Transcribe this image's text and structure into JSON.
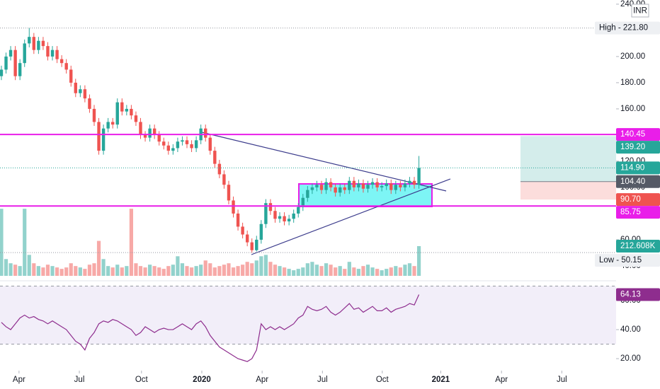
{
  "chart_data": {
    "type": "candlestick",
    "currency": "INR",
    "up_color": "#26a69a",
    "down_color": "#ef5350",
    "xlim": [
      -0.3,
      132.5
    ],
    "xticks": [
      {
        "value": 3.8,
        "label": "Apr"
      },
      {
        "value": 16.8,
        "label": "Jul"
      },
      {
        "value": 30.2,
        "label": "Oct"
      },
      {
        "value": 43.2,
        "label": "2020",
        "major": true
      },
      {
        "value": 56.2,
        "label": "Apr"
      },
      {
        "value": 69.2,
        "label": "Jul"
      },
      {
        "value": 82.1,
        "label": "Oct"
      },
      {
        "value": 94.7,
        "label": "2021",
        "major": true
      },
      {
        "value": 107.8,
        "label": "Apr"
      },
      {
        "value": 120.8,
        "label": "Jul"
      }
    ],
    "ylim": [
      32.4,
      243.2
    ],
    "yticks": [
      {
        "value": 40,
        "label": "40.00"
      },
      {
        "value": 60,
        "label": "60.00"
      },
      {
        "value": 80,
        "label": "80.00"
      },
      {
        "value": 100,
        "label": "100.00"
      },
      {
        "value": 120,
        "label": "120.00"
      },
      {
        "value": 140,
        "label": "140.00"
      },
      {
        "value": 160,
        "label": "160.00"
      },
      {
        "value": 180,
        "label": "180.00"
      },
      {
        "value": 200,
        "label": "200.00"
      },
      {
        "value": 220,
        "label": "220.00"
      },
      {
        "value": 240,
        "label": "240.00"
      }
    ],
    "open": [
      185,
      190,
      200,
      205,
      185,
      195,
      210,
      215,
      205,
      212,
      208,
      200,
      205,
      198,
      195,
      190,
      180,
      172,
      175,
      168,
      160,
      150,
      128,
      145,
      150,
      148,
      165,
      158,
      160,
      155,
      150,
      140,
      138,
      145,
      140,
      135,
      132,
      128,
      130,
      135,
      136,
      133,
      130,
      136,
      145,
      138,
      128,
      118,
      110,
      102,
      90,
      80,
      70,
      64,
      58,
      52,
      60,
      72,
      88,
      82,
      76,
      78,
      74,
      76,
      80,
      85,
      92,
      98,
      100,
      102,
      98,
      104,
      100,
      96,
      100,
      98,
      105,
      100,
      103,
      99,
      102,
      104,
      100,
      101,
      103,
      98,
      102,
      100,
      103,
      105,
      102
    ],
    "high": [
      193,
      203,
      208,
      208,
      198,
      213,
      221.8,
      218,
      215,
      215,
      211,
      208,
      208,
      201,
      198,
      193,
      183,
      178,
      178,
      171,
      163,
      153,
      148,
      153,
      153,
      168,
      168,
      163,
      163,
      158,
      153,
      143,
      148,
      148,
      143,
      138,
      135,
      133,
      138,
      139,
      139,
      136,
      139,
      148,
      148,
      141,
      131,
      121,
      113,
      105,
      93,
      83,
      73,
      67,
      61,
      63,
      75,
      91,
      91,
      85,
      81,
      81,
      79,
      83,
      88,
      95,
      101,
      103,
      105,
      105,
      107,
      107,
      103,
      103,
      103,
      108,
      108,
      106,
      106,
      105,
      107,
      107,
      104,
      106,
      106,
      105,
      105,
      106,
      108,
      108,
      124
    ],
    "low": [
      182,
      187,
      197,
      182,
      182,
      192,
      207,
      202,
      202,
      205,
      197,
      197,
      195,
      192,
      187,
      177,
      169,
      169,
      165,
      157,
      147,
      125,
      125,
      142,
      145,
      145,
      155,
      155,
      152,
      147,
      137,
      135,
      135,
      137,
      132,
      129,
      125,
      125,
      127,
      132,
      130,
      127,
      127,
      133,
      135,
      125,
      115,
      107,
      99,
      87,
      77,
      67,
      61,
      55,
      50.15,
      51,
      57,
      69,
      79,
      73,
      73,
      71,
      71,
      73,
      77,
      82,
      89,
      95,
      97,
      95,
      95,
      97,
      93,
      93,
      95,
      95,
      97,
      97,
      96,
      96,
      99,
      97,
      97,
      98,
      95,
      95,
      97,
      97,
      100,
      99,
      99
    ],
    "close": [
      190,
      200,
      205,
      185,
      195,
      210,
      215,
      205,
      212,
      208,
      200,
      205,
      198,
      195,
      190,
      180,
      172,
      175,
      168,
      160,
      150,
      128,
      145,
      150,
      148,
      165,
      158,
      160,
      155,
      150,
      140,
      138,
      145,
      140,
      135,
      132,
      128,
      130,
      135,
      136,
      133,
      130,
      136,
      145,
      138,
      128,
      118,
      110,
      102,
      90,
      80,
      70,
      64,
      58,
      52,
      60,
      72,
      88,
      82,
      76,
      78,
      74,
      76,
      80,
      85,
      92,
      98,
      100,
      102,
      98,
      104,
      100,
      96,
      100,
      98,
      105,
      100,
      103,
      99,
      102,
      104,
      100,
      101,
      103,
      98,
      102,
      100,
      103,
      105,
      102,
      114.9
    ],
    "high_label": "High - 221.80",
    "low_label": "Low - 50.15",
    "price_tags": [
      {
        "value": 140.45,
        "label": "140.45",
        "color": "#e91ee9",
        "line": "solid"
      },
      {
        "value": 139.2,
        "label": "139.20",
        "color": "#26a69a"
      },
      {
        "value": 114.9,
        "label": "114.90",
        "color": "#26a69a",
        "line": "dotted"
      },
      {
        "value": 104.4,
        "label": "104.40",
        "color": "#555a66"
      },
      {
        "value": 90.7,
        "label": "90.70",
        "color": "#ef5350"
      },
      {
        "value": 85.75,
        "label": "85.75",
        "color": "#e91ee9",
        "line": "solid"
      }
    ],
    "position_tool": {
      "target": 139.2,
      "entry": 104.4,
      "stop": 90.7,
      "profit_color": "rgba(38,166,154,0.2)",
      "loss_color": "rgba(239,83,80,0.2)"
    },
    "volume": {
      "ylim": [
        0,
        1973
      ],
      "values": [
        480,
        120,
        90,
        80,
        70,
        480,
        150,
        90,
        70,
        60,
        80,
        70,
        60,
        50,
        60,
        90,
        70,
        60,
        50,
        80,
        90,
        250,
        120,
        70,
        60,
        80,
        60,
        70,
        480,
        90,
        70,
        60,
        80,
        70,
        60,
        50,
        70,
        80,
        140,
        90,
        70,
        60,
        70,
        80,
        110,
        90,
        60,
        70,
        80,
        90,
        60,
        70,
        80,
        100,
        90,
        110,
        140,
        150,
        100,
        80,
        70,
        60,
        50,
        40,
        50,
        60,
        90,
        100,
        80,
        70,
        90,
        80,
        60,
        70,
        50,
        100,
        60,
        50,
        70,
        80,
        60,
        50,
        40,
        50,
        60,
        70,
        60,
        80,
        90,
        70,
        212.608
      ],
      "last_label": "212.608K"
    },
    "rsi": {
      "color": "#8e2d8e",
      "ylim": [
        13.7,
        72.2
      ],
      "yticks": [
        {
          "value": 20,
          "label": "20.00"
        },
        {
          "value": 40,
          "label": "40.00"
        },
        {
          "value": 60,
          "label": "60.00"
        }
      ],
      "bands": [
        30,
        70
      ],
      "values": [
        45,
        42,
        40,
        44,
        48,
        50,
        48,
        49,
        47,
        46,
        44,
        46,
        44,
        42,
        40,
        36,
        32,
        30,
        26,
        34,
        38,
        44,
        46,
        45,
        47,
        46,
        44,
        42,
        40,
        36,
        38,
        42,
        40,
        38,
        40,
        41,
        40,
        40,
        42,
        44,
        42,
        40,
        44,
        46,
        42,
        36,
        32,
        28,
        26,
        24,
        22,
        20,
        19,
        18,
        20,
        26,
        44,
        40,
        42,
        40,
        42,
        40,
        42,
        44,
        48,
        50,
        56,
        54,
        53,
        54,
        56,
        52,
        50,
        52,
        55,
        58,
        54,
        55,
        52,
        54,
        56,
        53,
        53,
        55,
        52,
        54,
        55,
        56,
        58,
        57,
        64.13
      ],
      "last_label": "64.13"
    }
  }
}
